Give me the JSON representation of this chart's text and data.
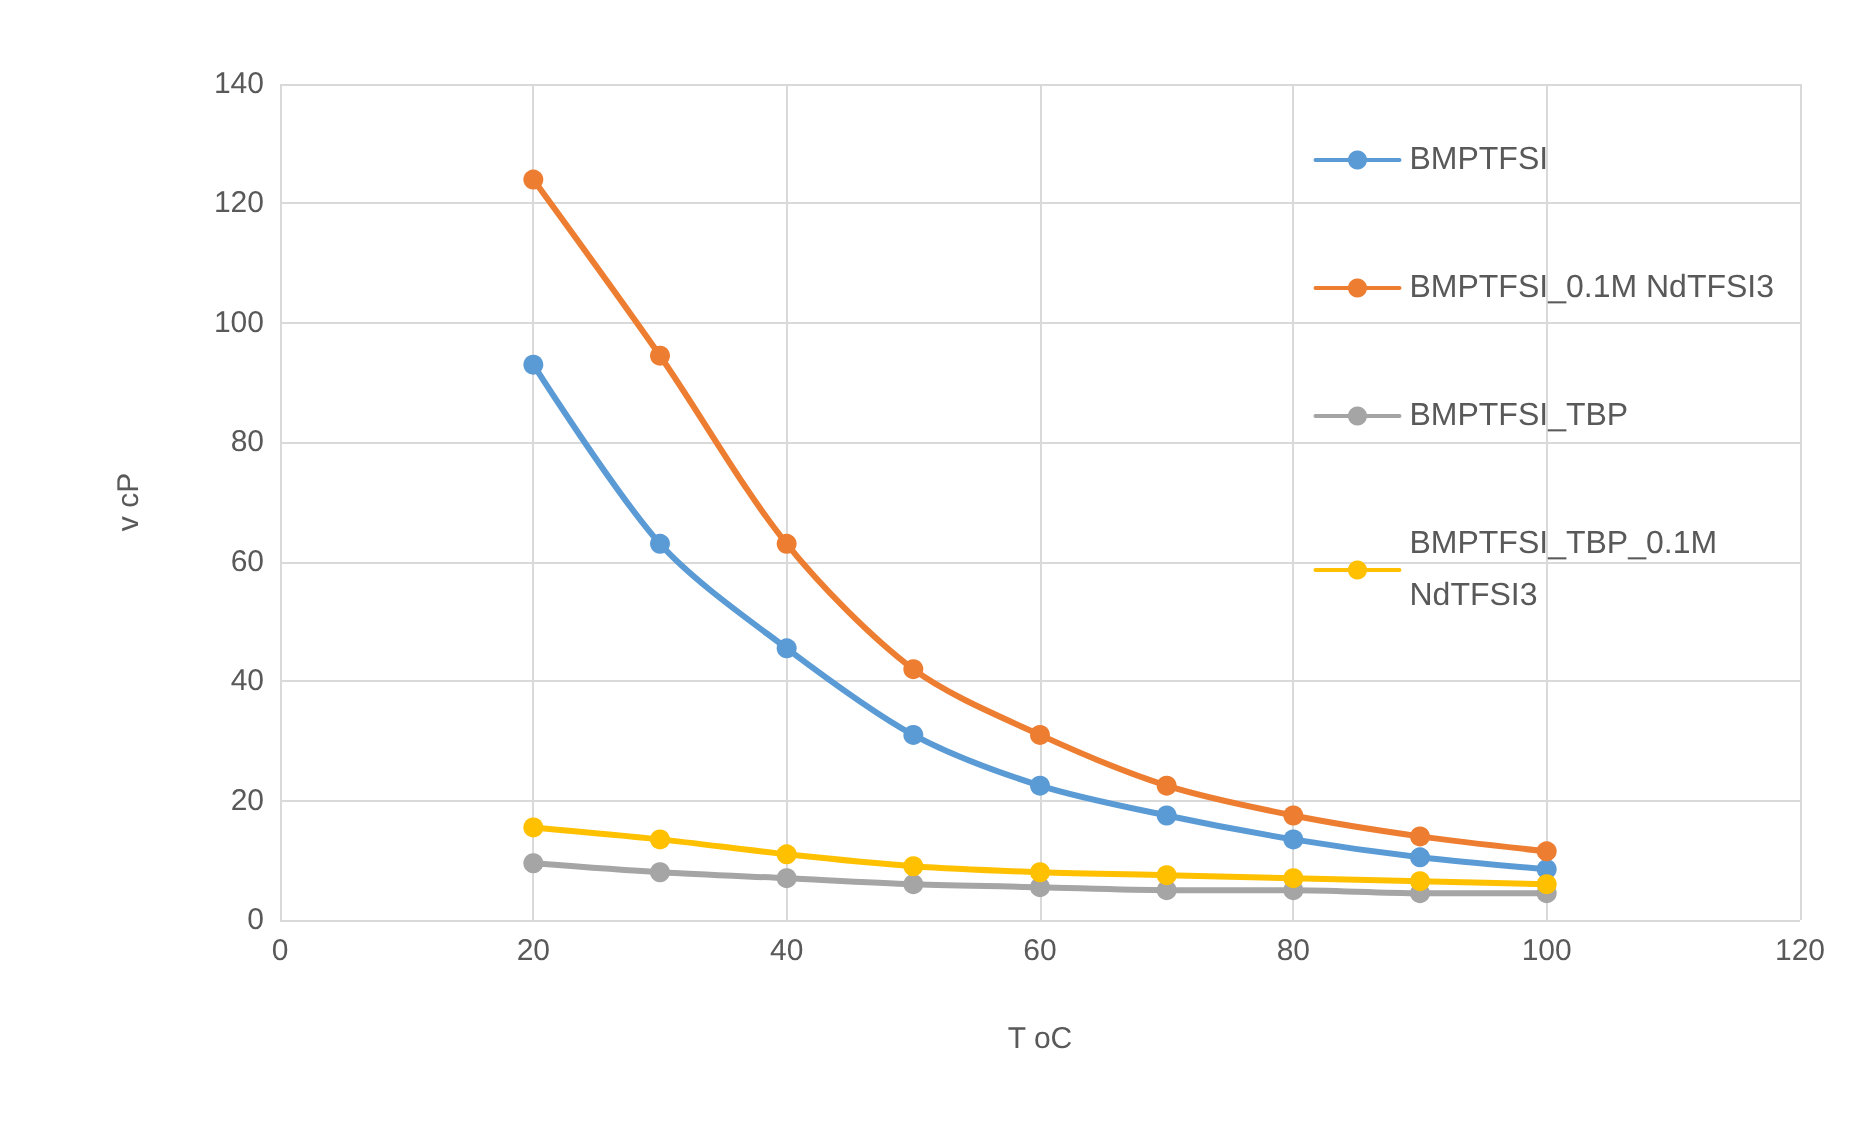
{
  "chart_data": {
    "type": "line",
    "xlabel": "T oC",
    "ylabel": "v cP",
    "x": [
      20,
      30,
      40,
      50,
      60,
      70,
      80,
      90,
      100
    ],
    "series": [
      {
        "name": "BMPTFSI",
        "color": "#5b9bd5",
        "values": [
          93,
          63,
          45.5,
          31,
          22.5,
          17.5,
          13.5,
          10.5,
          8.5
        ]
      },
      {
        "name": "BMPTFSI_0.1M NdTFSI3",
        "color": "#ed7d31",
        "values": [
          124,
          94.5,
          63,
          42,
          31,
          22.5,
          17.5,
          14,
          11.5
        ]
      },
      {
        "name": "BMPTFSI_TBP",
        "color": "#a5a5a5",
        "values": [
          9.5,
          8,
          7,
          6,
          5.5,
          5,
          5,
          4.5,
          4.5
        ]
      },
      {
        "name": "BMPTFSI_TBP_0.1M\nNdTFSI3",
        "color": "#ffc000",
        "values": [
          15.5,
          13.5,
          11,
          9,
          8,
          7.5,
          7,
          6.5,
          6
        ]
      }
    ],
    "xlim": [
      0,
      120
    ],
    "xticks": [
      0,
      20,
      40,
      60,
      80,
      100,
      120
    ],
    "ylim": [
      0,
      140
    ],
    "yticks": [
      0,
      20,
      40,
      60,
      80,
      100,
      120,
      140
    ],
    "grid": true,
    "legend": "top right",
    "marker": "circle",
    "line_style": "solid"
  }
}
